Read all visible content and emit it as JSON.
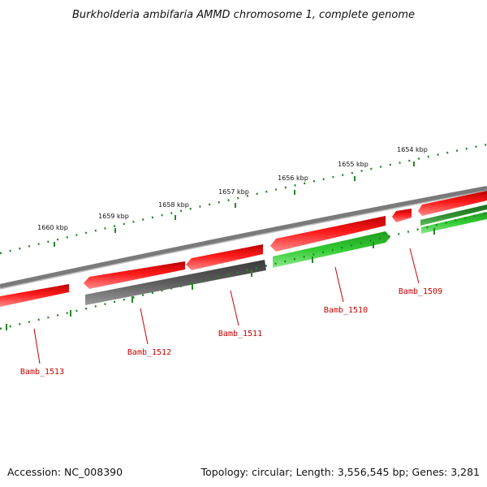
{
  "title": "Burkholderia ambifaria AMMD chromosome 1, complete genome",
  "footer": {
    "accession": "Accession: NC_008390",
    "summary": "Topology: circular; Length: 3,556,545 bp; Genes: 3,281"
  },
  "kbp_labels": [
    "1660 kbp",
    "1659 kbp",
    "1658 kbp",
    "1657 kbp",
    "1656 kbp",
    "1655 kbp",
    "1654 kbp"
  ],
  "genes": [
    {
      "name": "Bamb_1513",
      "strand": "forward",
      "color": "red"
    },
    {
      "name": "Bamb_1512",
      "strand": "reverse",
      "color": "gray"
    },
    {
      "name": "Bamb_1511",
      "strand": "forward",
      "color": "red"
    },
    {
      "name": "Bamb_1510",
      "strand": "reverse",
      "color": "green"
    },
    {
      "name": "Bamb_1509",
      "strand": "forward",
      "color": "red"
    }
  ],
  "colors": {
    "forward_gene": "#ee1111",
    "pseudo_gene": "#555555",
    "reverse_gene": "#33cc33",
    "backbone": "#888888",
    "ticks": "#228822",
    "label": "#cc0000"
  }
}
